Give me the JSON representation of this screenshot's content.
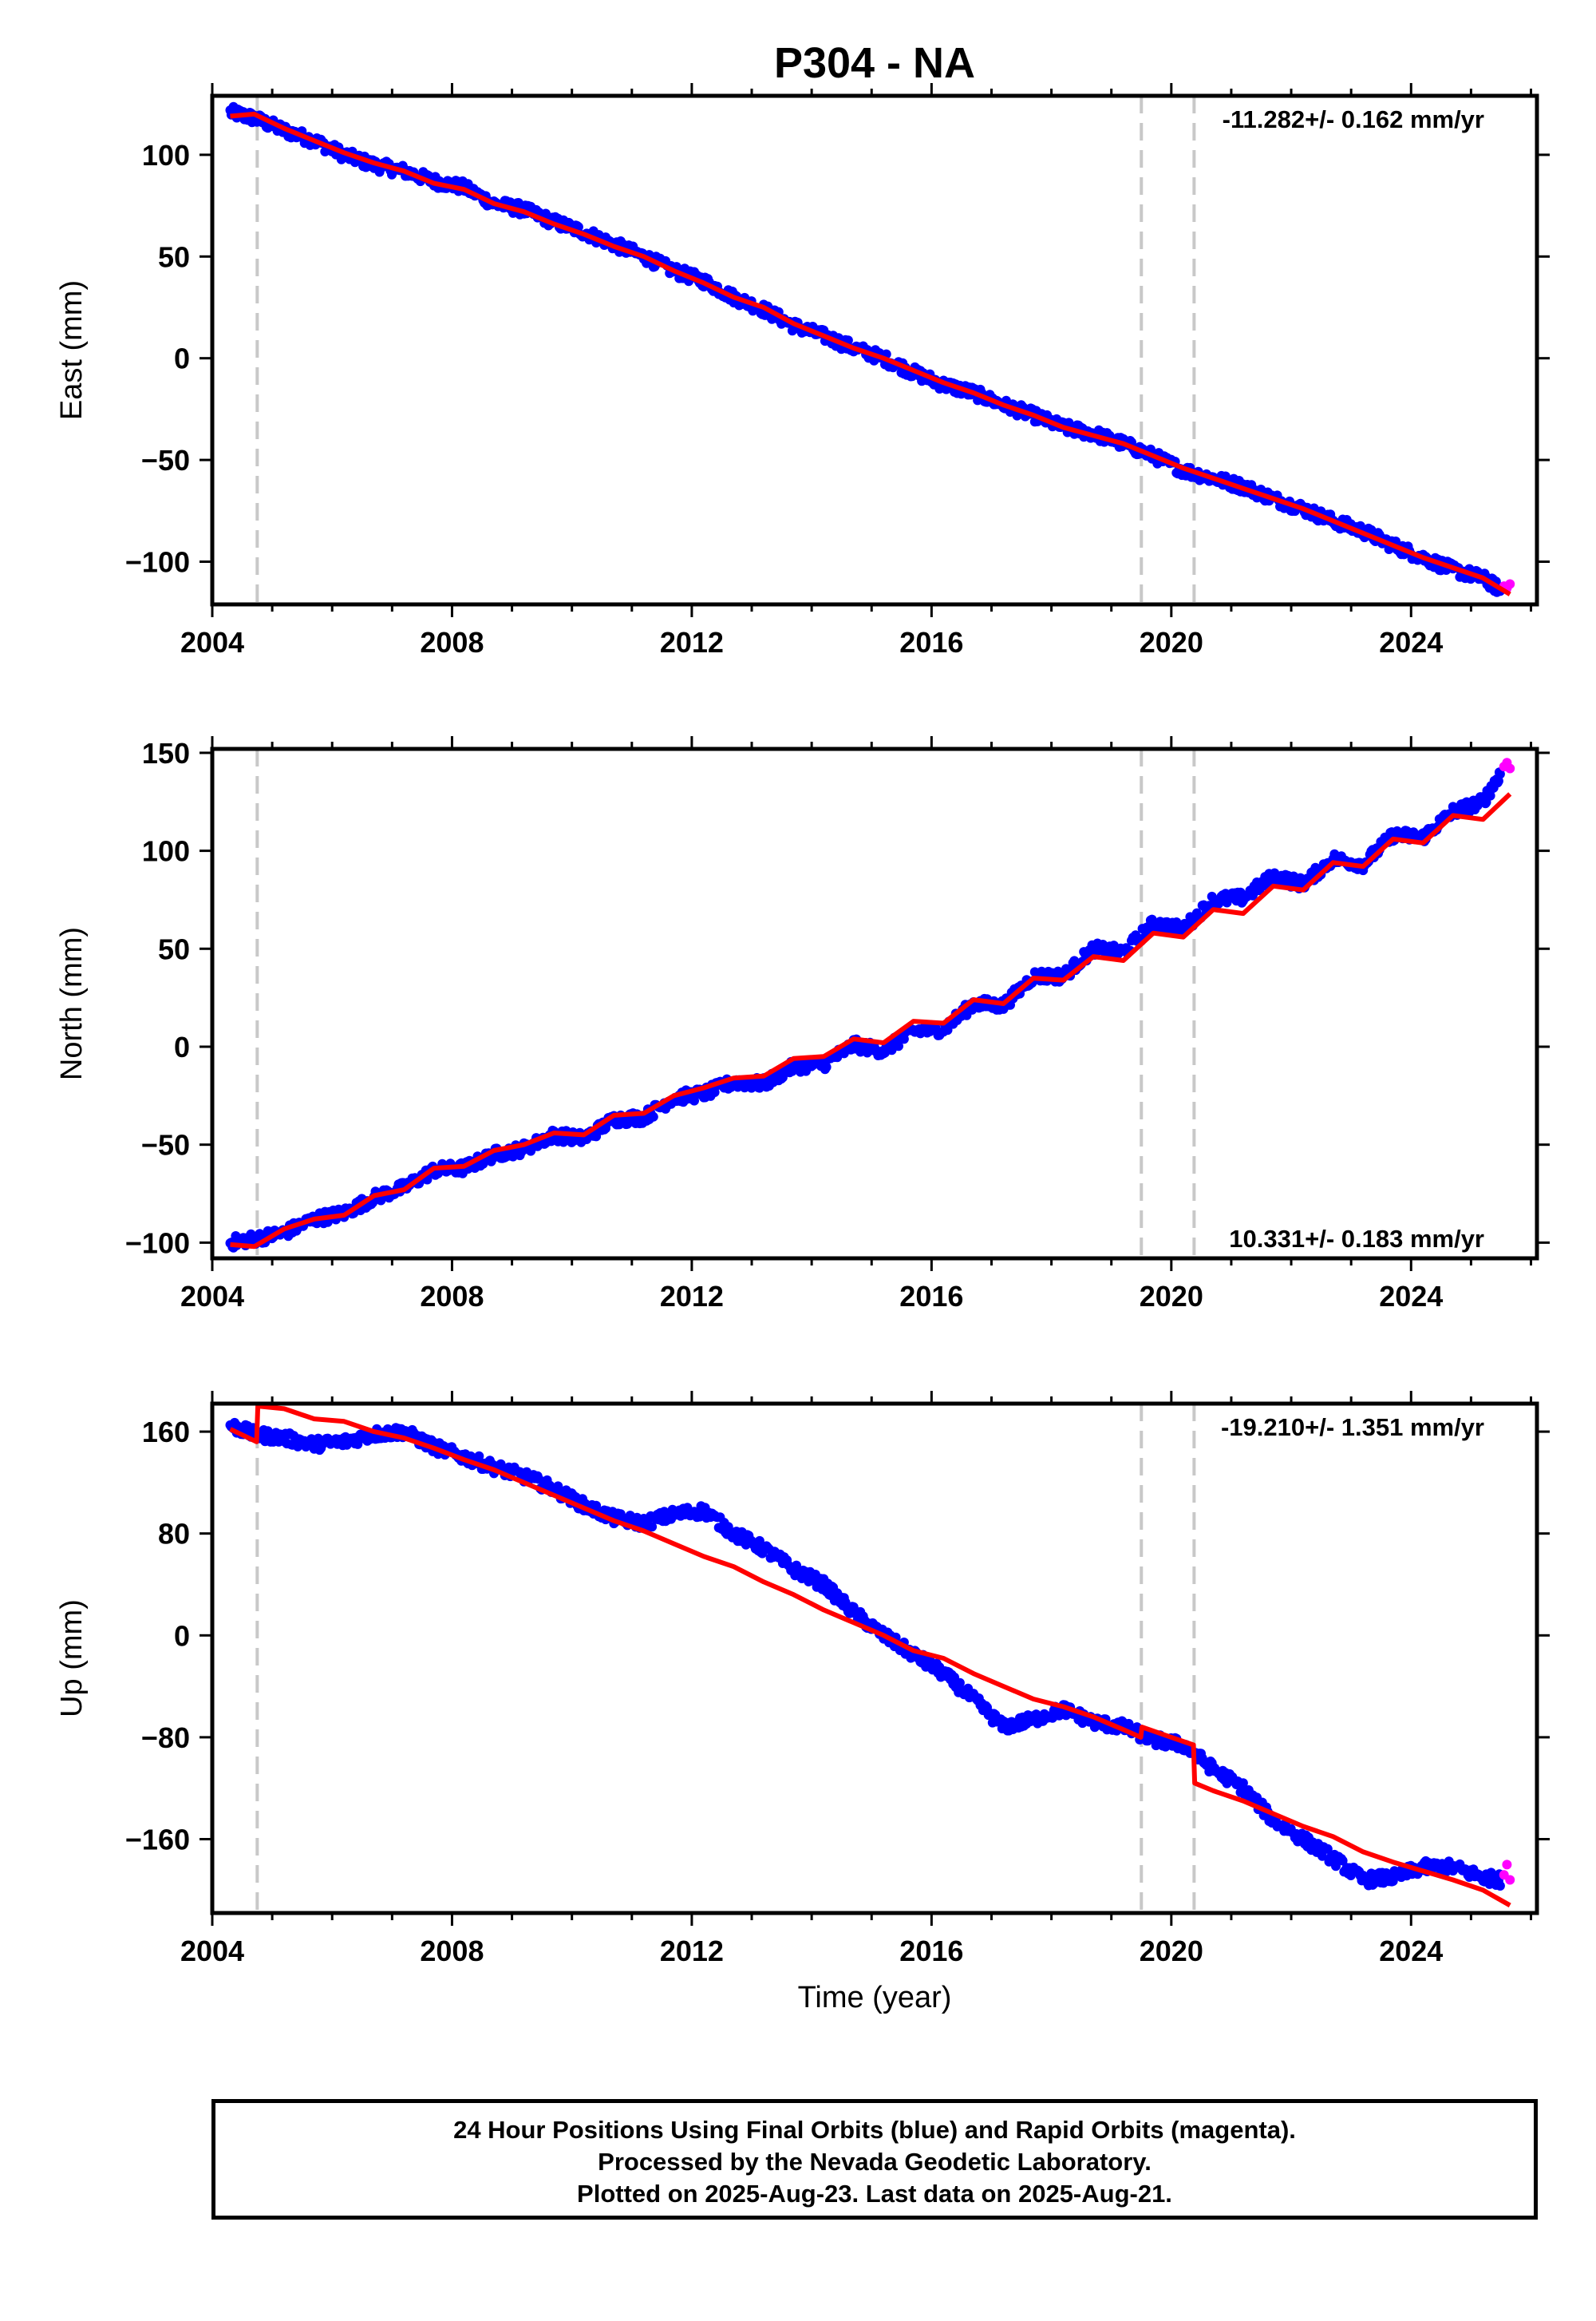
{
  "title": "P304 - NA",
  "xlabel": "Time (year)",
  "colors": {
    "final": "#0000ff",
    "rapid": "#ff00ff",
    "model": "#ff0000",
    "steps": "#c8c8c8",
    "frame": "#000000"
  },
  "footer": {
    "line1": "24 Hour Positions Using Final Orbits (blue) and Rapid Orbits (magenta).",
    "line2": "Processed by the Nevada Geodetic Laboratory.",
    "line3": "Plotted on 2025-Aug-23. Last data on 2025-Aug-21."
  },
  "chart_data": [
    {
      "type": "scatter",
      "component": "east",
      "ylabel": "East (mm)",
      "xlim": [
        2004.0,
        2026.1
      ],
      "ylim": [
        -121,
        129
      ],
      "xticks": [
        2004,
        2008,
        2012,
        2016,
        2020,
        2024
      ],
      "xtick_labels": [
        "2004",
        "2008",
        "2012",
        "2016",
        "2020",
        "2024"
      ],
      "yticks": [
        100,
        50,
        0,
        -50,
        -100
      ],
      "ytick_labels": [
        "100",
        "50",
        "0",
        "−50",
        "−100"
      ],
      "steps": [
        2004.75,
        2019.5,
        2020.38
      ],
      "velocity_label": "-11.282+/- 0.162 mm/yr",
      "velocity_position": "top-right",
      "series": [
        {
          "name": "Final Orbits",
          "color": "#0000ff",
          "x": [
            2004.3,
            2004.7,
            2005.2,
            2005.7,
            2006.2,
            2006.7,
            2007.2,
            2007.7,
            2008.2,
            2008.7,
            2009.2,
            2009.7,
            2010.2,
            2010.7,
            2011.2,
            2011.7,
            2012.2,
            2012.7,
            2013.2,
            2013.7,
            2014.2,
            2014.7,
            2015.2,
            2015.7,
            2016.2,
            2016.7,
            2017.2,
            2017.7,
            2018.2,
            2018.7,
            2019.2,
            2019.7,
            2020.2,
            2020.7,
            2021.2,
            2021.7,
            2022.2,
            2022.7,
            2023.2,
            2023.7,
            2024.2,
            2024.7,
            2025.2,
            2025.5
          ],
          "y": [
            121,
            118,
            112,
            107,
            100,
            95,
            92,
            87,
            84,
            76,
            73,
            67,
            62,
            56,
            50,
            43,
            38,
            30,
            24,
            16,
            11,
            5,
            0,
            -7,
            -13,
            -17,
            -23,
            -28,
            -34,
            -37,
            -42,
            -48,
            -55,
            -59,
            -63,
            -69,
            -74,
            -80,
            -85,
            -92,
            -98,
            -104,
            -108,
            -114
          ]
        },
        {
          "name": "Rapid Orbits",
          "color": "#ff00ff",
          "x": [
            2025.55,
            2025.6,
            2025.65
          ],
          "y": [
            -112,
            -113,
            -111
          ]
        },
        {
          "name": "Model",
          "color": "#ff0000",
          "x": [
            2004.3,
            2004.7,
            2005.2,
            2005.7,
            2006.2,
            2006.7,
            2007.2,
            2007.7,
            2008.2,
            2008.7,
            2009.2,
            2009.7,
            2010.2,
            2010.7,
            2011.2,
            2011.7,
            2012.2,
            2012.7,
            2013.2,
            2013.7,
            2014.2,
            2014.7,
            2015.2,
            2015.7,
            2016.2,
            2016.7,
            2017.2,
            2017.7,
            2018.2,
            2018.7,
            2019.2,
            2019.7,
            2020.2,
            2020.7,
            2021.2,
            2021.7,
            2022.2,
            2022.7,
            2023.2,
            2023.7,
            2024.2,
            2024.7,
            2025.2,
            2025.65
          ],
          "y": [
            119,
            120,
            113,
            107,
            101,
            96,
            92,
            86,
            83,
            76,
            72,
            66,
            61,
            55,
            50,
            43,
            37,
            30,
            25,
            17,
            11,
            5,
            0,
            -6,
            -12,
            -17,
            -23,
            -28,
            -34,
            -38,
            -42,
            -48,
            -54,
            -59,
            -64,
            -69,
            -74,
            -80,
            -86,
            -92,
            -98,
            -103,
            -108,
            -116
          ]
        }
      ]
    },
    {
      "type": "scatter",
      "component": "north",
      "ylabel": "North (mm)",
      "xlim": [
        2004.0,
        2026.1
      ],
      "ylim": [
        -108,
        152
      ],
      "xticks": [
        2004,
        2008,
        2012,
        2016,
        2020,
        2024
      ],
      "xtick_labels": [
        "2004",
        "2008",
        "2012",
        "2016",
        "2020",
        "2024"
      ],
      "yticks": [
        150,
        100,
        50,
        0,
        -50,
        -100
      ],
      "ytick_labels": [
        "150",
        "100",
        "50",
        "0",
        "−50",
        "−100"
      ],
      "steps": [
        2004.75,
        2019.5,
        2020.38
      ],
      "velocity_label": "10.331+/- 0.183 mm/yr",
      "velocity_position": "bottom-right",
      "series": [
        {
          "name": "Final Orbits",
          "color": "#0000ff",
          "x": [
            2004.3,
            2004.7,
            2005.2,
            2005.7,
            2006.2,
            2006.7,
            2007.2,
            2007.7,
            2008.2,
            2008.7,
            2009.2,
            2009.7,
            2010.2,
            2010.7,
            2011.2,
            2011.7,
            2012.2,
            2012.7,
            2013.2,
            2013.7,
            2014.2,
            2014.7,
            2015.2,
            2015.7,
            2016.2,
            2016.7,
            2017.2,
            2017.7,
            2018.2,
            2018.7,
            2019.2,
            2019.7,
            2020.2,
            2020.7,
            2021.2,
            2021.7,
            2022.2,
            2022.7,
            2023.2,
            2023.7,
            2024.2,
            2024.7,
            2025.2,
            2025.5
          ],
          "y": [
            -100,
            -98,
            -95,
            -88,
            -85,
            -77,
            -72,
            -63,
            -62,
            -55,
            -52,
            -45,
            -47,
            -37,
            -36,
            -26,
            -24,
            -18,
            -19,
            -10,
            -9,
            1,
            -2,
            8,
            9,
            22,
            21,
            36,
            36,
            50,
            48,
            63,
            60,
            75,
            76,
            87,
            83,
            96,
            93,
            108,
            107,
            120,
            125,
            140
          ]
        },
        {
          "name": "Rapid Orbits",
          "color": "#ff00ff",
          "x": [
            2025.55,
            2025.6,
            2025.65
          ],
          "y": [
            143,
            145,
            142
          ]
        },
        {
          "name": "Model",
          "color": "#ff0000",
          "x": [
            2004.3,
            2004.7,
            2005.2,
            2005.7,
            2006.2,
            2006.7,
            2007.2,
            2007.7,
            2008.2,
            2008.7,
            2009.2,
            2009.7,
            2010.2,
            2010.7,
            2011.2,
            2011.7,
            2012.2,
            2012.7,
            2013.2,
            2013.7,
            2014.2,
            2014.7,
            2015.2,
            2015.7,
            2016.2,
            2016.7,
            2017.2,
            2017.7,
            2018.2,
            2018.7,
            2019.2,
            2019.7,
            2020.2,
            2020.7,
            2021.2,
            2021.7,
            2022.2,
            2022.7,
            2023.2,
            2023.7,
            2024.2,
            2024.7,
            2025.2,
            2025.65
          ],
          "y": [
            -101,
            -102,
            -93,
            -88,
            -86,
            -76,
            -73,
            -62,
            -61,
            -53,
            -50,
            -44,
            -45,
            -35,
            -34,
            -25,
            -21,
            -16,
            -15,
            -6,
            -5,
            4,
            2,
            13,
            12,
            24,
            22,
            35,
            34,
            46,
            44,
            58,
            56,
            70,
            68,
            82,
            80,
            94,
            92,
            106,
            104,
            118,
            116,
            129
          ]
        }
      ]
    },
    {
      "type": "scatter",
      "component": "up",
      "ylabel": "Up (mm)",
      "xlim": [
        2004.0,
        2026.1
      ],
      "ylim": [
        -218,
        182
      ],
      "xticks": [
        2004,
        2008,
        2012,
        2016,
        2020,
        2024
      ],
      "xtick_labels": [
        "2004",
        "2008",
        "2012",
        "2016",
        "2020",
        "2024"
      ],
      "yticks": [
        160,
        80,
        0,
        -80,
        -160
      ],
      "ytick_labels": [
        "160",
        "80",
        "0",
        "−80",
        "−160"
      ],
      "steps": [
        2004.75,
        2019.5,
        2020.38
      ],
      "velocity_label": "-19.210+/- 1.351 mm/yr",
      "velocity_position": "top-right",
      "series": [
        {
          "name": "Final Orbits",
          "color": "#0000ff",
          "x": [
            2004.3,
            2004.7,
            2005.2,
            2005.7,
            2006.2,
            2006.7,
            2007.2,
            2007.7,
            2008.2,
            2008.7,
            2009.2,
            2009.7,
            2010.2,
            2010.7,
            2011.2,
            2011.7,
            2012.2,
            2012.7,
            2013.2,
            2013.7,
            2014.2,
            2014.7,
            2015.2,
            2015.7,
            2016.2,
            2016.7,
            2017.2,
            2017.7,
            2018.2,
            2018.7,
            2019.2,
            2019.7,
            2020.2,
            2020.7,
            2021.2,
            2021.7,
            2022.2,
            2022.7,
            2023.2,
            2023.7,
            2024.2,
            2024.7,
            2025.2,
            2025.5
          ],
          "y": [
            165,
            158,
            155,
            150,
            152,
            158,
            160,
            148,
            140,
            132,
            125,
            115,
            102,
            92,
            88,
            95,
            98,
            80,
            68,
            52,
            40,
            18,
            0,
            -15,
            -30,
            -50,
            -72,
            -66,
            -58,
            -68,
            -72,
            -82,
            -86,
            -105,
            -120,
            -145,
            -160,
            -175,
            -192,
            -190,
            -182,
            -182,
            -190,
            -192
          ]
        },
        {
          "name": "Rapid Orbits",
          "color": "#ff00ff",
          "x": [
            2025.55,
            2025.6,
            2025.65
          ],
          "y": [
            -188,
            -180,
            -192
          ]
        },
        {
          "name": "Model",
          "color": "#ff0000",
          "x": [
            2004.3,
            2004.74,
            2004.76,
            2005.2,
            2005.7,
            2006.2,
            2006.7,
            2007.2,
            2007.7,
            2008.2,
            2008.7,
            2009.2,
            2009.7,
            2010.2,
            2010.7,
            2011.2,
            2011.7,
            2012.2,
            2012.7,
            2013.2,
            2013.7,
            2014.2,
            2014.7,
            2015.2,
            2015.7,
            2016.2,
            2016.7,
            2017.2,
            2017.7,
            2018.2,
            2018.7,
            2019.2,
            2019.49,
            2019.51,
            2020.0,
            2020.37,
            2020.39,
            2020.7,
            2021.2,
            2021.7,
            2022.2,
            2022.7,
            2023.2,
            2023.7,
            2024.2,
            2024.7,
            2025.2,
            2025.65
          ],
          "y": [
            162,
            152,
            180,
            178,
            170,
            168,
            160,
            155,
            147,
            138,
            130,
            120,
            110,
            100,
            90,
            82,
            72,
            62,
            54,
            42,
            32,
            20,
            10,
            0,
            -12,
            -18,
            -30,
            -40,
            -50,
            -56,
            -64,
            -74,
            -80,
            -72,
            -80,
            -86,
            -116,
            -122,
            -130,
            -140,
            -150,
            -158,
            -170,
            -178,
            -185,
            -192,
            -200,
            -212
          ]
        }
      ]
    }
  ]
}
